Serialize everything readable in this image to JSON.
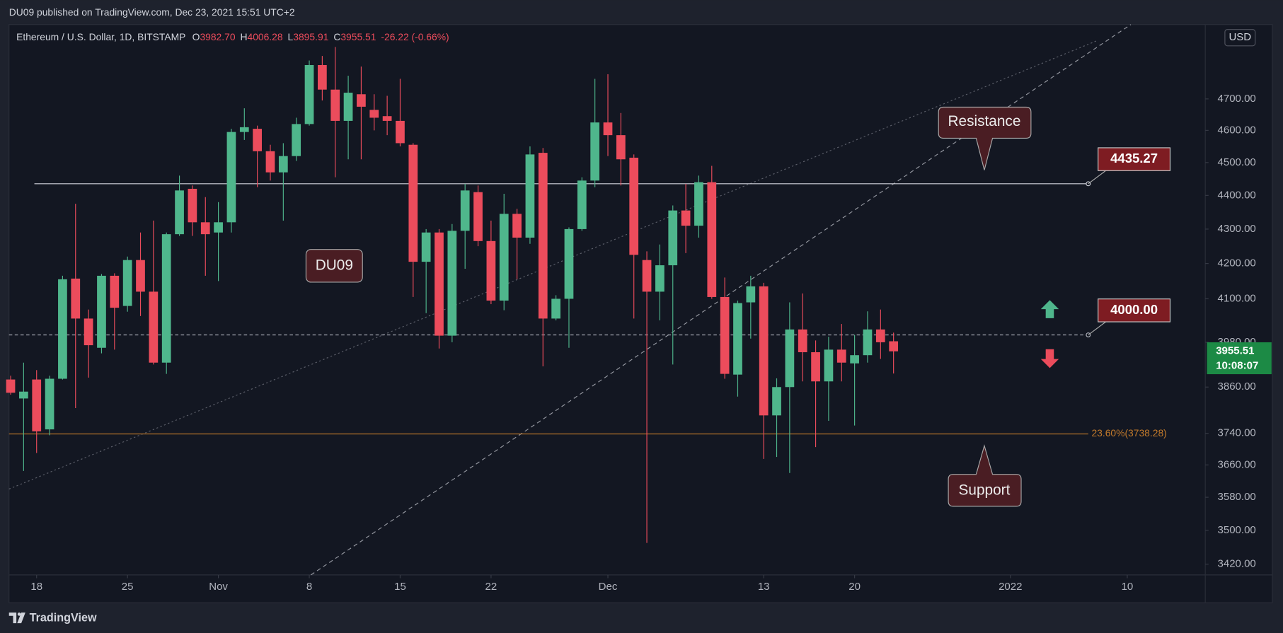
{
  "header": {
    "publisher": "DU09 published on TradingView.com, Dec 23, 2021 15:51 UTC+2",
    "brand": "TradingView"
  },
  "chart_data": {
    "type": "candlestick",
    "title": "Ethereum / U.S. Dollar, 1D, BITSTAMP",
    "ohlc_legend": [
      {
        "label": "O",
        "value": "3982.70"
      },
      {
        "label": "H",
        "value": "4006.28"
      },
      {
        "label": "L",
        "value": "3895.91"
      },
      {
        "label": "C",
        "value": "3955.51"
      }
    ],
    "change": "-26.22 (-0.66%)",
    "currency": "USD",
    "x": [
      "2021-10-16",
      "2021-10-17",
      "2021-10-18",
      "2021-10-19",
      "2021-10-20",
      "2021-10-21",
      "2021-10-22",
      "2021-10-23",
      "2021-10-24",
      "2021-10-25",
      "2021-10-26",
      "2021-10-27",
      "2021-10-28",
      "2021-10-29",
      "2021-10-30",
      "2021-10-31",
      "2021-11-01",
      "2021-11-02",
      "2021-11-03",
      "2021-11-04",
      "2021-11-05",
      "2021-11-06",
      "2021-11-07",
      "2021-11-08",
      "2021-11-09",
      "2021-11-10",
      "2021-11-11",
      "2021-11-12",
      "2021-11-13",
      "2021-11-14",
      "2021-11-15",
      "2021-11-16",
      "2021-11-17",
      "2021-11-18",
      "2021-11-19",
      "2021-11-20",
      "2021-11-21",
      "2021-11-22",
      "2021-11-23",
      "2021-11-24",
      "2021-11-25",
      "2021-11-26",
      "2021-11-27",
      "2021-11-28",
      "2021-11-29",
      "2021-11-30",
      "2021-12-01",
      "2021-12-02",
      "2021-12-03",
      "2021-12-04",
      "2021-12-05",
      "2021-12-06",
      "2021-12-07",
      "2021-12-08",
      "2021-12-09",
      "2021-12-10",
      "2021-12-11",
      "2021-12-12",
      "2021-12-13",
      "2021-12-14",
      "2021-12-15",
      "2021-12-16",
      "2021-12-17",
      "2021-12-18",
      "2021-12-19",
      "2021-12-20",
      "2021-12-21",
      "2021-12-22",
      "2021-12-23"
    ],
    "open": [
      3880,
      3830,
      3880,
      3750,
      3882,
      4157,
      4045,
      3965,
      4165,
      4080,
      4210,
      4120,
      3925,
      4285,
      4420,
      4320,
      4290,
      4320,
      4595,
      4605,
      4535,
      4470,
      4520,
      4620,
      4810,
      4730,
      4630,
      4715,
      4665,
      4645,
      4630,
      4555,
      4205,
      4290,
      3998,
      4295,
      4410,
      4265,
      4095,
      4345,
      4275,
      4530,
      4045,
      4100,
      4300,
      4445,
      4625,
      4585,
      4515,
      4210,
      4120,
      4195,
      4355,
      4310,
      4440,
      4105,
      3893,
      4090,
      4135,
      3786,
      3860,
      4015,
      3953,
      3875,
      3960,
      3923,
      3945,
      4015,
      3982.7
    ],
    "high": [
      3890,
      3925,
      3905,
      3890,
      4165,
      4375,
      4070,
      4170,
      4172,
      4220,
      4290,
      4325,
      4290,
      4460,
      4430,
      4395,
      4380,
      4605,
      4670,
      4615,
      4555,
      4560,
      4640,
      4825,
      4840,
      4870,
      4775,
      4805,
      4715,
      4710,
      4765,
      4560,
      4300,
      4300,
      4315,
      4435,
      4430,
      4325,
      4405,
      4360,
      4550,
      4545,
      4110,
      4305,
      4455,
      4765,
      4780,
      4655,
      4525,
      4235,
      4255,
      4370,
      4435,
      4460,
      4490,
      4160,
      4095,
      4165,
      4145,
      3883,
      4090,
      4115,
      3985,
      3995,
      4030,
      4000,
      4065,
      4070,
      4006.28
    ],
    "low": [
      3840,
      3645,
      3690,
      3735,
      3880,
      3805,
      3885,
      3950,
      3960,
      4064,
      4052,
      3920,
      3895,
      4280,
      4280,
      4165,
      4150,
      4290,
      4570,
      4425,
      4445,
      4325,
      4505,
      4615,
      4695,
      4455,
      4510,
      4510,
      4600,
      4585,
      4550,
      4105,
      4060,
      3963,
      3980,
      4185,
      4250,
      4085,
      4068,
      4155,
      4257,
      3915,
      4040,
      3965,
      4295,
      4425,
      4520,
      4430,
      4045,
      3470,
      4040,
      3920,
      4230,
      4275,
      4100,
      3882,
      3835,
      3990,
      3675,
      3680,
      3640,
      3875,
      3705,
      3772,
      3875,
      3760,
      3925,
      3935,
      3895.91
    ],
    "close": [
      3845,
      3848,
      3745,
      3882,
      4155,
      4045,
      3972,
      4165,
      4075,
      4210,
      4120,
      3925,
      4285,
      4415,
      4320,
      4285,
      4320,
      4595,
      4610,
      4535,
      4470,
      4520,
      4620,
      4810,
      4730,
      4630,
      4720,
      4675,
      4640,
      4630,
      4560,
      4205,
      4290,
      3998,
      4295,
      4415,
      4265,
      4095,
      4345,
      4275,
      4525,
      4045,
      4100,
      4300,
      4445,
      4625,
      4585,
      4510,
      4225,
      4120,
      4195,
      4355,
      4310,
      4440,
      4105,
      3895,
      4088,
      4135,
      3786,
      3860,
      4015,
      3953,
      3875,
      3960,
      3925,
      3945,
      4015,
      3980,
      3955.51
    ],
    "up_color": "#4fb68c",
    "down_color": "#ec4c5c",
    "log_scale": true,
    "ylim": [
      3395,
      4945
    ],
    "yticks": [
      {
        "value": 3420,
        "label": "3420.00"
      },
      {
        "value": 3500,
        "label": "3500.00"
      },
      {
        "value": 3580,
        "label": "3580.00"
      },
      {
        "value": 3660,
        "label": "3660.00"
      },
      {
        "value": 3740,
        "label": "3740.00"
      },
      {
        "value": 3860,
        "label": "3860.00"
      },
      {
        "value": 3980,
        "label": "3980.00"
      },
      {
        "value": 4100,
        "label": "4100.00"
      },
      {
        "value": 4200,
        "label": "4200.00"
      },
      {
        "value": 4300,
        "label": "4300.00"
      },
      {
        "value": 4400,
        "label": "4400.00"
      },
      {
        "value": 4500,
        "label": "4500.00"
      },
      {
        "value": 4600,
        "label": "4600.00"
      },
      {
        "value": 4700,
        "label": "4700.00"
      }
    ],
    "xlim": [
      "2021-10-16",
      "2022-01-15"
    ],
    "xticks": [
      {
        "value": "2021-10-18",
        "label": "18"
      },
      {
        "value": "2021-10-25",
        "label": "25"
      },
      {
        "value": "2021-11-01",
        "label": "Nov"
      },
      {
        "value": "2021-11-08",
        "label": "8"
      },
      {
        "value": "2021-11-15",
        "label": "15"
      },
      {
        "value": "2021-11-22",
        "label": "22"
      },
      {
        "value": "2021-12-01",
        "label": "Dec"
      },
      {
        "value": "2021-12-13",
        "label": "13"
      },
      {
        "value": "2021-12-20",
        "label": "20"
      },
      {
        "value": "2022-01-01",
        "label": "2022"
      },
      {
        "value": "2022-01-10",
        "label": "10"
      }
    ],
    "grid": false,
    "last_price": {
      "value": 3955.51,
      "label": "3955.51",
      "countdown": "10:08:07",
      "color": "#1c8a45"
    },
    "horizontal_lines": [
      {
        "value": 4435.27,
        "label": "4435.27",
        "style": "solid",
        "color": "#d1d4dc",
        "boxed": true
      },
      {
        "value": 4000,
        "label": "4000.00",
        "style": "dashed",
        "color": "#b2b5be",
        "boxed": true
      },
      {
        "value": 3738.28,
        "label": "23.60%(3738.28)",
        "style": "solid",
        "color": "#c47b2b",
        "boxed": false
      }
    ],
    "callouts": [
      "Resistance",
      "Support",
      "DU09"
    ]
  }
}
